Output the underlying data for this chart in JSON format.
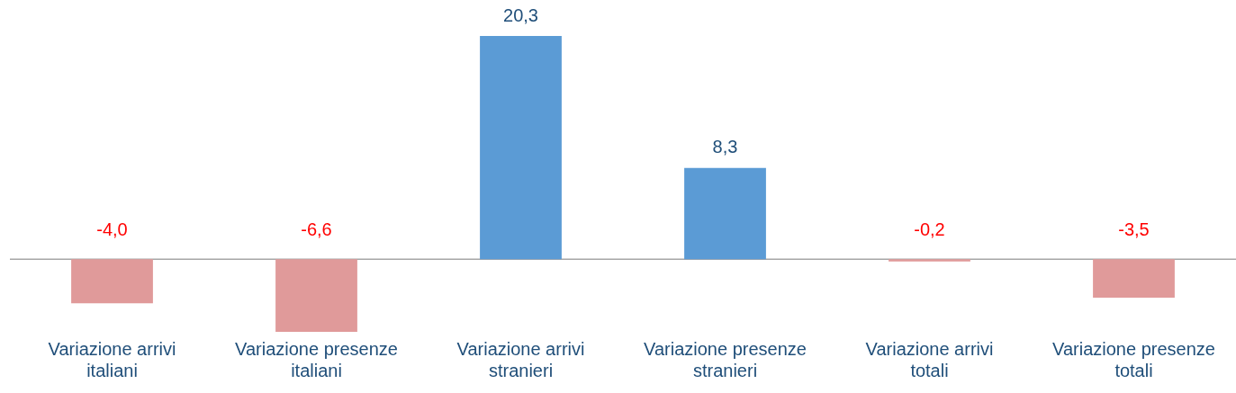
{
  "chart_data": {
    "type": "bar",
    "categories": [
      "Variazione arrivi italiani",
      "Variazione presenze italiani",
      "Variazione arrivi stranieri",
      "Variazione presenze stranieri",
      "Variazione arrivi totali",
      "Variazione presenze totali"
    ],
    "values": [
      -4.0,
      -6.6,
      20.3,
      8.3,
      -0.2,
      -3.5
    ],
    "value_labels": [
      "-4,0",
      "-6,6",
      "20,3",
      "8,3",
      "-0,2",
      "-3,5"
    ],
    "colors": [
      "#e09a9a",
      "#e09a9a",
      "#5b9bd5",
      "#5b9bd5",
      "#e09a9a",
      "#e09a9a"
    ],
    "grid": false,
    "legend": false
  }
}
